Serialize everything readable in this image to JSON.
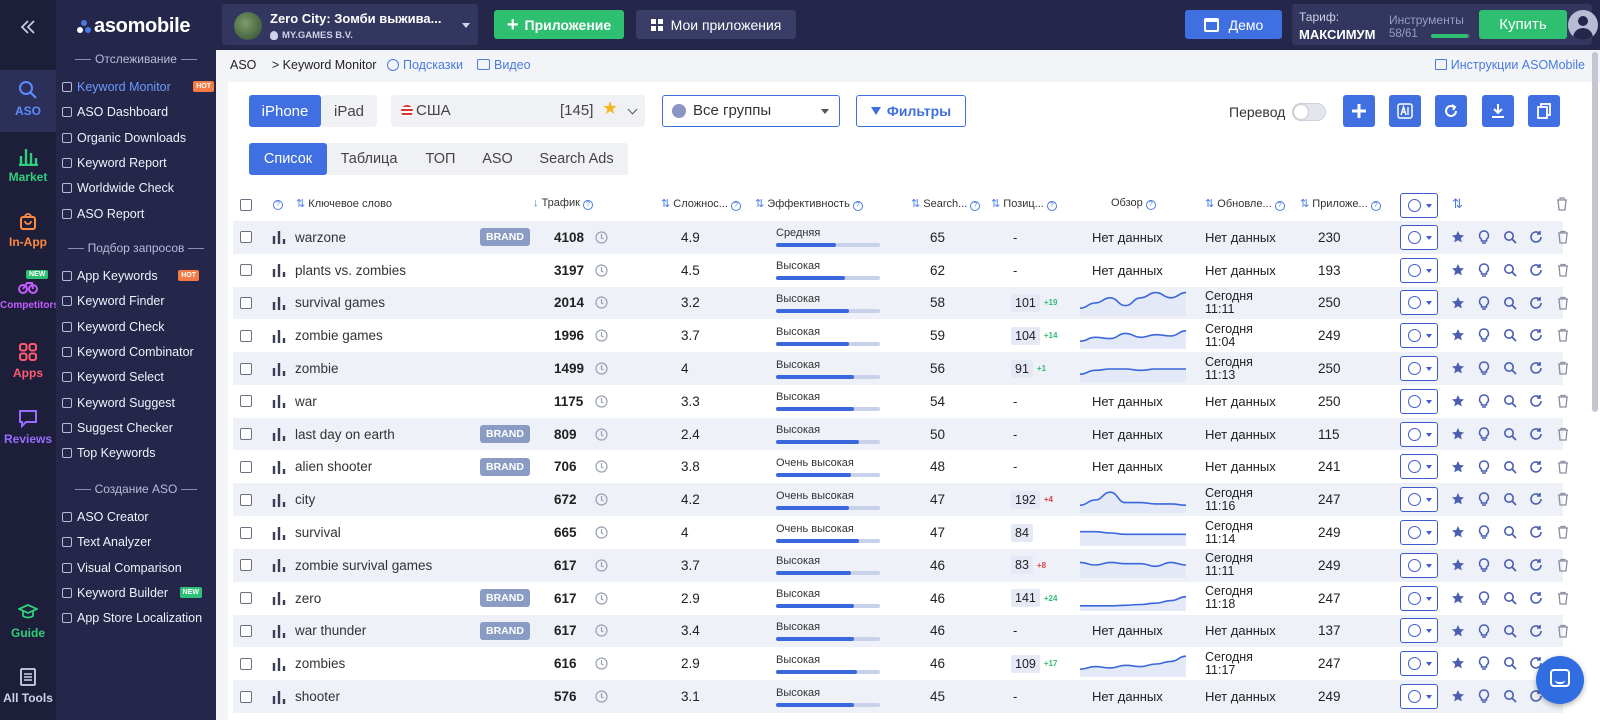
{
  "sidebar_rail": [
    {
      "label": "ASO",
      "icon": "search-icon",
      "color": "#5b8cff",
      "active": true
    },
    {
      "label": "Market",
      "icon": "bar-chart-icon",
      "color": "#2fcf7a"
    },
    {
      "label": "In-App",
      "icon": "bag-icon",
      "color": "#ff8a3d"
    },
    {
      "label": "Competitors",
      "icon": "bicycle-icon",
      "color": "#c45bff",
      "badge": "NEW"
    },
    {
      "label": "Apps",
      "icon": "grid-icon",
      "color": "#ff5a6e"
    },
    {
      "label": "Reviews",
      "icon": "chat-icon",
      "color": "#9a6bff"
    },
    {
      "label": "Guide",
      "icon": "graduation-icon",
      "color": "#2fcf7a"
    },
    {
      "label": "All Tools",
      "icon": "list-icon",
      "color": "#d0d2e6"
    }
  ],
  "brand": {
    "logo_text": "asomobile",
    "collapse_icon": "double-chevron-left-icon"
  },
  "sidebar": {
    "section_tracking": "Отслеживание",
    "section_queries": "Подбор запросов",
    "section_create": "Создание ASO",
    "items_tracking": [
      {
        "label": "Keyword Monitor",
        "badge": "HOT",
        "active": true
      },
      {
        "label": "ASO Dashboard"
      },
      {
        "label": "Organic Downloads"
      },
      {
        "label": "Keyword Report"
      },
      {
        "label": "Worldwide Check"
      },
      {
        "label": "ASO Report"
      }
    ],
    "items_queries": [
      {
        "label": "App Keywords",
        "badge": "HOT"
      },
      {
        "label": "Keyword Finder"
      },
      {
        "label": "Keyword Check"
      },
      {
        "label": "Keyword Combinator"
      },
      {
        "label": "Keyword Select"
      },
      {
        "label": "Keyword Suggest"
      },
      {
        "label": "Suggest Checker"
      },
      {
        "label": "Top Keywords"
      }
    ],
    "items_create": [
      {
        "label": "ASO Creator"
      },
      {
        "label": "Text Analyzer"
      },
      {
        "label": "Visual Comparison"
      },
      {
        "label": "Keyword Builder",
        "badge": "NEW"
      },
      {
        "label": "App Store Localization"
      }
    ]
  },
  "topbar": {
    "app_name": "Zero City: Зомби выжива...",
    "app_publisher": "MY.GAMES B.V.",
    "add_app": "Приложение",
    "my_apps": "Мои приложения",
    "demo": "Демо",
    "tariff_label": "Тариф:",
    "tariff_value": "МАКСИМУМ",
    "tools_label": "Инструменты",
    "tools_count": "58/61",
    "tools_used_fraction": 0.95,
    "buy": "Купить"
  },
  "breadcrumb": {
    "root": "ASO",
    "current": "> Keyword Monitor",
    "hints": "Подсказки",
    "video": "Видео",
    "instructions": "Инструкции ASOMobile"
  },
  "controls": {
    "device_tabs": [
      "iPhone",
      "iPad"
    ],
    "country": "США",
    "country_count": "[145]",
    "group": "Все группы",
    "filters": "Фильтры",
    "translate": "Перевод",
    "view_tabs": [
      "Список",
      "Таблица",
      "ТОП",
      "ASO",
      "Search Ads"
    ]
  },
  "table": {
    "headers": {
      "keyword": "Ключевое слово",
      "traffic": "Трафик",
      "difficulty": "Сложнос...",
      "efficiency": "Эффективность",
      "search": "Search...",
      "position": "Позиц...",
      "overview": "Обзор",
      "updated": "Обновле...",
      "apps": "Приложе..."
    },
    "rows": [
      {
        "kw": "warzone",
        "brand": "BRAND",
        "traffic": "4108",
        "diff": "4.9",
        "eff": "Средняя",
        "eff_level": 0.58,
        "search": "65",
        "pos": "-",
        "chg": "",
        "overview": "Нет данных",
        "upd": "Нет данных",
        "apps": "230"
      },
      {
        "kw": "plants vs. zombies",
        "brand": "",
        "traffic": "3197",
        "diff": "4.5",
        "eff": "Высокая",
        "eff_level": 0.66,
        "search": "62",
        "pos": "-",
        "chg": "",
        "overview": "Нет данных",
        "upd": "Нет данных",
        "apps": "193"
      },
      {
        "kw": "survival games",
        "brand": "",
        "traffic": "2014",
        "diff": "3.2",
        "eff": "Высокая",
        "eff_level": 0.7,
        "search": "58",
        "pos": "101",
        "chg": "+19",
        "spark": [
          0.7,
          0.5,
          0.3,
          0.6,
          0.3,
          0.1,
          0.3,
          0.1
        ],
        "upd": "Сегодня\n11:11",
        "upd1": "Сегодня",
        "upd2": "11:11",
        "apps": "250"
      },
      {
        "kw": "zombie games",
        "brand": "",
        "traffic": "1996",
        "diff": "3.7",
        "eff": "Высокая",
        "eff_level": 0.7,
        "search": "59",
        "pos": "104",
        "chg": "+14",
        "spark": [
          0.7,
          0.55,
          0.6,
          0.4,
          0.55,
          0.45,
          0.5,
          0.3
        ],
        "upd1": "Сегодня",
        "upd2": "11:04",
        "apps": "249"
      },
      {
        "kw": "zombie",
        "brand": "",
        "traffic": "1499",
        "diff": "4",
        "eff": "Высокая",
        "eff_level": 0.75,
        "search": "56",
        "pos": "91",
        "chg": "+1",
        "spark": [
          0.7,
          0.55,
          0.5,
          0.5,
          0.55,
          0.5,
          0.5,
          0.5
        ],
        "upd1": "Сегодня",
        "upd2": "11:13",
        "apps": "250"
      },
      {
        "kw": "war",
        "brand": "",
        "traffic": "1175",
        "diff": "3.3",
        "eff": "Высокая",
        "eff_level": 0.75,
        "search": "54",
        "pos": "-",
        "chg": "",
        "overview": "Нет данных",
        "upd": "Нет данных",
        "apps": "250"
      },
      {
        "kw": "last day on earth",
        "brand": "BRAND",
        "traffic": "809",
        "diff": "2.4",
        "eff": "Высокая",
        "eff_level": 0.8,
        "search": "50",
        "pos": "-",
        "chg": "",
        "overview": "Нет данных",
        "upd": "Нет данных",
        "apps": "115"
      },
      {
        "kw": "alien shooter",
        "brand": "BRAND",
        "traffic": "706",
        "diff": "3.8",
        "eff": "Очень высокая",
        "eff_level": 0.72,
        "search": "48",
        "pos": "-",
        "chg": "",
        "overview": "Нет данных",
        "upd": "Нет данных",
        "apps": "241"
      },
      {
        "kw": "city",
        "brand": "",
        "traffic": "672",
        "diff": "4.2",
        "eff": "Очень высокая",
        "eff_level": 0.7,
        "search": "47",
        "pos": "192",
        "chg": "+4",
        "neg": true,
        "spark": [
          0.7,
          0.5,
          0.2,
          0.6,
          0.6,
          0.65,
          0.65,
          0.7
        ],
        "upd1": "Сегодня",
        "upd2": "11:16",
        "apps": "247"
      },
      {
        "kw": "survival",
        "brand": "",
        "traffic": "665",
        "diff": "4",
        "eff": "Очень высокая",
        "eff_level": 0.8,
        "search": "47",
        "pos": "84",
        "chg": "",
        "spark": [
          0.45,
          0.45,
          0.5,
          0.55,
          0.55,
          0.55,
          0.55,
          0.55
        ],
        "upd1": "Сегодня",
        "upd2": "11:14",
        "apps": "249"
      },
      {
        "kw": "zombie survival games",
        "brand": "",
        "traffic": "617",
        "diff": "3.7",
        "eff": "Высокая",
        "eff_level": 0.72,
        "search": "46",
        "pos": "83",
        "chg": "+8",
        "neg": true,
        "spark": [
          0.4,
          0.5,
          0.4,
          0.45,
          0.45,
          0.55,
          0.4,
          0.5
        ],
        "upd1": "Сегодня",
        "upd2": "11:11",
        "apps": "249"
      },
      {
        "kw": "zero",
        "brand": "BRAND",
        "traffic": "617",
        "diff": "2.9",
        "eff": "Высокая",
        "eff_level": 0.75,
        "search": "46",
        "pos": "141",
        "chg": "+24",
        "spark": [
          0.8,
          0.8,
          0.8,
          0.78,
          0.75,
          0.7,
          0.6,
          0.45
        ],
        "upd1": "Сегодня",
        "upd2": "11:18",
        "apps": "247"
      },
      {
        "kw": "war thunder",
        "brand": "BRAND",
        "traffic": "617",
        "diff": "3.4",
        "eff": "Высокая",
        "eff_level": 0.75,
        "search": "46",
        "pos": "-",
        "chg": "",
        "overview": "Нет данных",
        "upd": "Нет данных",
        "apps": "137"
      },
      {
        "kw": "zombies",
        "brand": "",
        "traffic": "616",
        "diff": "2.9",
        "eff": "Высокая",
        "eff_level": 0.78,
        "search": "46",
        "pos": "109",
        "chg": "+17",
        "spark": [
          0.7,
          0.6,
          0.65,
          0.55,
          0.6,
          0.5,
          0.4,
          0.2
        ],
        "upd1": "Сегодня",
        "upd2": "11:17",
        "apps": "247"
      },
      {
        "kw": "shooter",
        "brand": "",
        "traffic": "576",
        "diff": "3.1",
        "eff": "Высокая",
        "eff_level": 0.75,
        "search": "45",
        "pos": "-",
        "chg": "",
        "overview": "Нет данных",
        "upd": "Нет данных",
        "apps": "249"
      }
    ]
  },
  "colors": {
    "accent": "#3f6fe0",
    "green": "#2fbf71",
    "sidebar": "#24264a"
  }
}
